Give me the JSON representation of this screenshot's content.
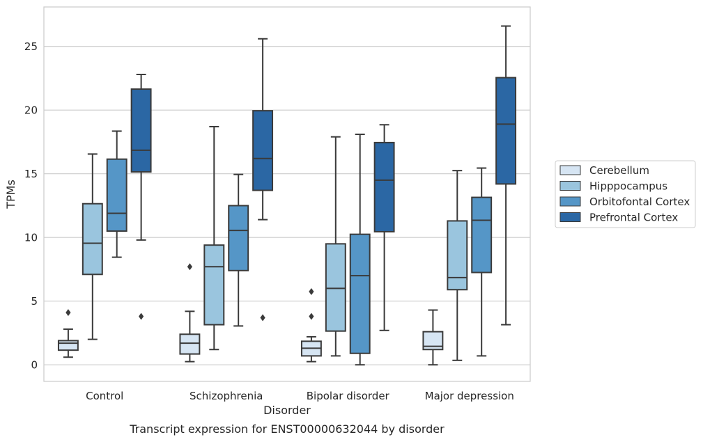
{
  "chart_data": {
    "type": "box",
    "caption": "Transcript expression for ENST00000632044 by disorder",
    "xlabel": "Disorder",
    "ylabel": "TPMs",
    "ylim": [
      -1.3,
      28.1
    ],
    "yticks": [
      0,
      5,
      10,
      15,
      20,
      25
    ],
    "grid": "horizontal",
    "legend_position": "right",
    "categories": [
      "Control",
      "Schizophrenia",
      "Bipolar disorder",
      "Major depression"
    ],
    "series": [
      {
        "name": "Cerebellum",
        "color": "#d6e5f3",
        "boxes": [
          {
            "whisker_low": 0.6,
            "q1": 1.15,
            "median": 1.7,
            "q3": 1.9,
            "whisker_high": 2.8,
            "outliers": [
              4.1
            ]
          },
          {
            "whisker_low": 0.25,
            "q1": 0.85,
            "median": 1.7,
            "q3": 2.4,
            "whisker_high": 4.2,
            "outliers": [
              7.7
            ]
          },
          {
            "whisker_low": 0.25,
            "q1": 0.7,
            "median": 1.3,
            "q3": 1.85,
            "whisker_high": 2.2,
            "outliers": [
              3.8,
              5.75
            ]
          },
          {
            "whisker_low": 0.0,
            "q1": 1.2,
            "median": 1.45,
            "q3": 2.6,
            "whisker_high": 4.3,
            "outliers": []
          }
        ]
      },
      {
        "name": "Hipppocampus",
        "color": "#9ac5de",
        "boxes": [
          {
            "whisker_low": 2.0,
            "q1": 7.1,
            "median": 9.55,
            "q3": 12.65,
            "whisker_high": 16.55,
            "outliers": []
          },
          {
            "whisker_low": 1.2,
            "q1": 3.15,
            "median": 7.7,
            "q3": 9.4,
            "whisker_high": 18.7,
            "outliers": []
          },
          {
            "whisker_low": 0.7,
            "q1": 2.65,
            "median": 6.0,
            "q3": 9.5,
            "whisker_high": 17.9,
            "outliers": []
          },
          {
            "whisker_low": 0.35,
            "q1": 5.9,
            "median": 6.85,
            "q3": 11.3,
            "whisker_high": 15.25,
            "outliers": []
          }
        ]
      },
      {
        "name": "Orbitofontal Cortex",
        "color": "#5596c7",
        "boxes": [
          {
            "whisker_low": 8.45,
            "q1": 10.5,
            "median": 11.9,
            "q3": 16.15,
            "whisker_high": 18.35,
            "outliers": []
          },
          {
            "whisker_low": 3.05,
            "q1": 7.4,
            "median": 10.55,
            "q3": 12.5,
            "whisker_high": 14.95,
            "outliers": []
          },
          {
            "whisker_low": 0.0,
            "q1": 0.9,
            "median": 7.0,
            "q3": 10.25,
            "whisker_high": 18.1,
            "outliers": []
          },
          {
            "whisker_low": 0.7,
            "q1": 7.25,
            "median": 11.35,
            "q3": 13.15,
            "whisker_high": 15.45,
            "outliers": []
          }
        ]
      },
      {
        "name": "Prefrontal Cortex",
        "color": "#2b67a4",
        "boxes": [
          {
            "whisker_low": 9.8,
            "q1": 15.15,
            "median": 16.85,
            "q3": 21.65,
            "whisker_high": 22.8,
            "outliers": [
              3.8
            ]
          },
          {
            "whisker_low": 11.4,
            "q1": 13.7,
            "median": 16.2,
            "q3": 19.95,
            "whisker_high": 25.6,
            "outliers": [
              3.7
            ]
          },
          {
            "whisker_low": 2.7,
            "q1": 10.45,
            "median": 14.5,
            "q3": 17.45,
            "whisker_high": 18.85,
            "outliers": []
          },
          {
            "whisker_low": 3.15,
            "q1": 14.2,
            "median": 18.9,
            "q3": 22.55,
            "whisker_high": 26.6,
            "outliers": []
          }
        ]
      }
    ]
  }
}
